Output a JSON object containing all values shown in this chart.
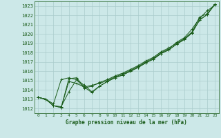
{
  "title": "Graphe pression niveau de la mer (hPa)",
  "background_color": "#cce8e8",
  "grid_color": "#aacccc",
  "line_color": "#1a5c1a",
  "xlim": [
    -0.5,
    23.5
  ],
  "ylim": [
    1011.5,
    1023.5
  ],
  "yticks": [
    1012,
    1013,
    1014,
    1015,
    1016,
    1017,
    1018,
    1019,
    1020,
    1021,
    1022,
    1023
  ],
  "xticks": [
    0,
    1,
    2,
    3,
    4,
    5,
    6,
    7,
    8,
    9,
    10,
    11,
    12,
    13,
    14,
    15,
    16,
    17,
    18,
    19,
    20,
    21,
    22,
    23
  ],
  "series": [
    [
      1013.2,
      1013.0,
      1012.5,
      1015.1,
      1015.3,
      1015.1,
      1014.2,
      1014.4,
      1014.8,
      1015.1,
      1015.5,
      1015.8,
      1016.2,
      1016.6,
      1017.1,
      1017.5,
      1018.1,
      1018.5,
      1019.0,
      1019.5,
      1020.2,
      1021.8,
      1022.2,
      1023.2
    ],
    [
      1013.2,
      1013.0,
      1012.3,
      1012.1,
      1015.2,
      1015.3,
      1014.3,
      1014.5,
      1014.7,
      1015.0,
      1015.4,
      1015.7,
      1016.1,
      1016.5,
      1017.0,
      1017.4,
      1018.0,
      1018.4,
      1019.1,
      1019.6,
      1020.5,
      1021.7,
      1022.5,
      1023.1
    ],
    [
      1013.2,
      1013.0,
      1012.3,
      1012.2,
      1013.8,
      1015.1,
      1014.5,
      1013.8,
      1014.4,
      1014.9,
      1015.3,
      1015.6,
      1016.0,
      1016.4,
      1016.9,
      1017.3,
      1017.9,
      1018.3,
      1018.9,
      1019.4,
      1020.1,
      1021.5,
      1022.1,
      1023.2
    ],
    [
      1013.2,
      1013.0,
      1012.3,
      1012.1,
      1014.9,
      1014.7,
      1014.3,
      1013.7,
      1014.4,
      1014.9,
      1015.3,
      1015.6,
      1016.0,
      1016.4,
      1016.9,
      1017.3,
      1017.9,
      1018.3,
      1018.9,
      1019.4,
      1020.1,
      1021.5,
      1022.1,
      1023.2
    ]
  ]
}
